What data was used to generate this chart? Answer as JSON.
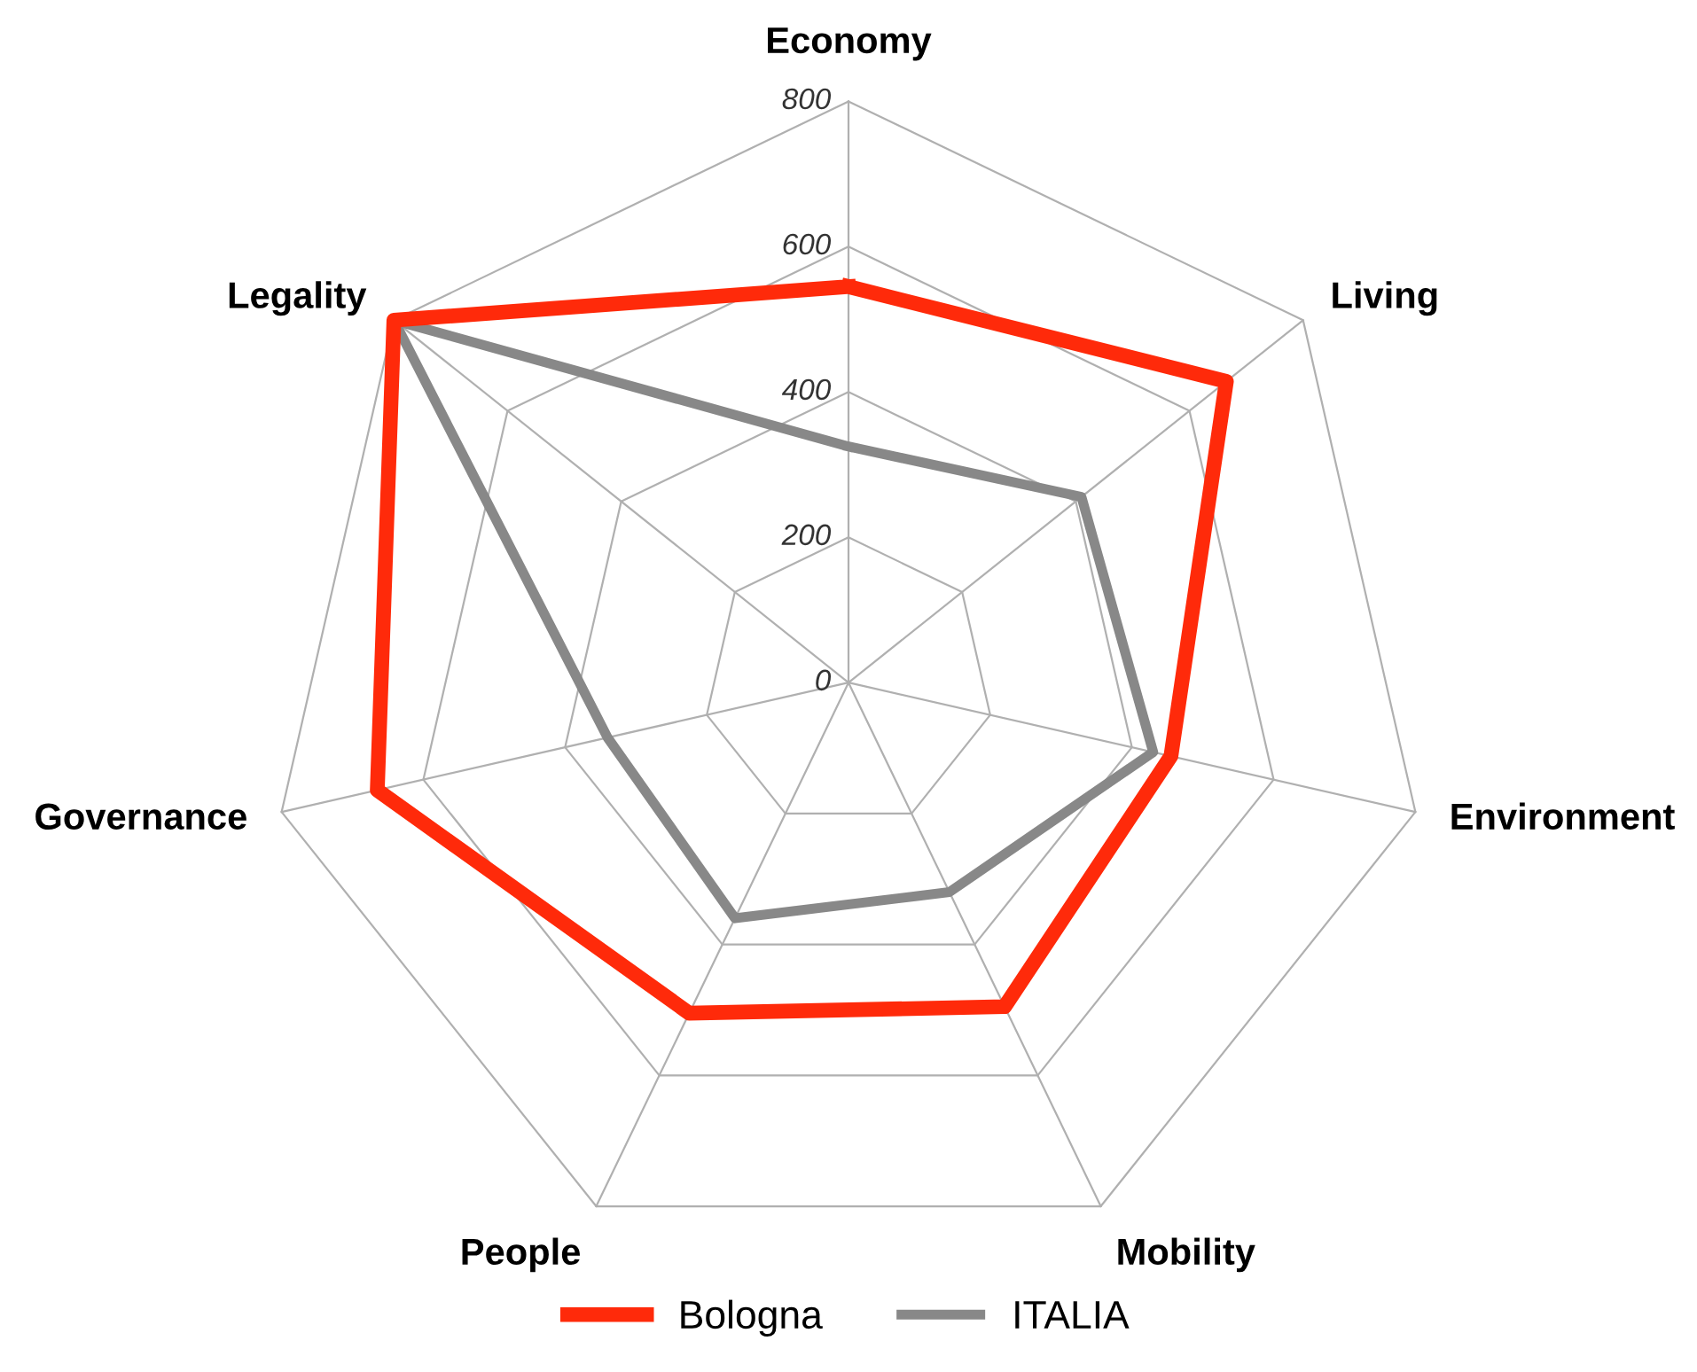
{
  "chart_data": {
    "type": "radar",
    "categories": [
      "Economy",
      "Living",
      "Environment",
      "Mobility",
      "People",
      "Governance",
      "Legality"
    ],
    "series": [
      {
        "name": "Bologna",
        "color": "#ff2a0a",
        "values": [
          545,
          665,
          455,
          495,
          505,
          665,
          800
        ]
      },
      {
        "name": "ITALIA",
        "color": "#888888",
        "values": [
          325,
          410,
          430,
          320,
          360,
          340,
          800
        ]
      }
    ],
    "ylim": [
      0,
      800
    ],
    "yticks": [
      0,
      200,
      400,
      600,
      800
    ],
    "grid": true,
    "legend": "bottom",
    "marker": "none",
    "line_style": "solid"
  }
}
